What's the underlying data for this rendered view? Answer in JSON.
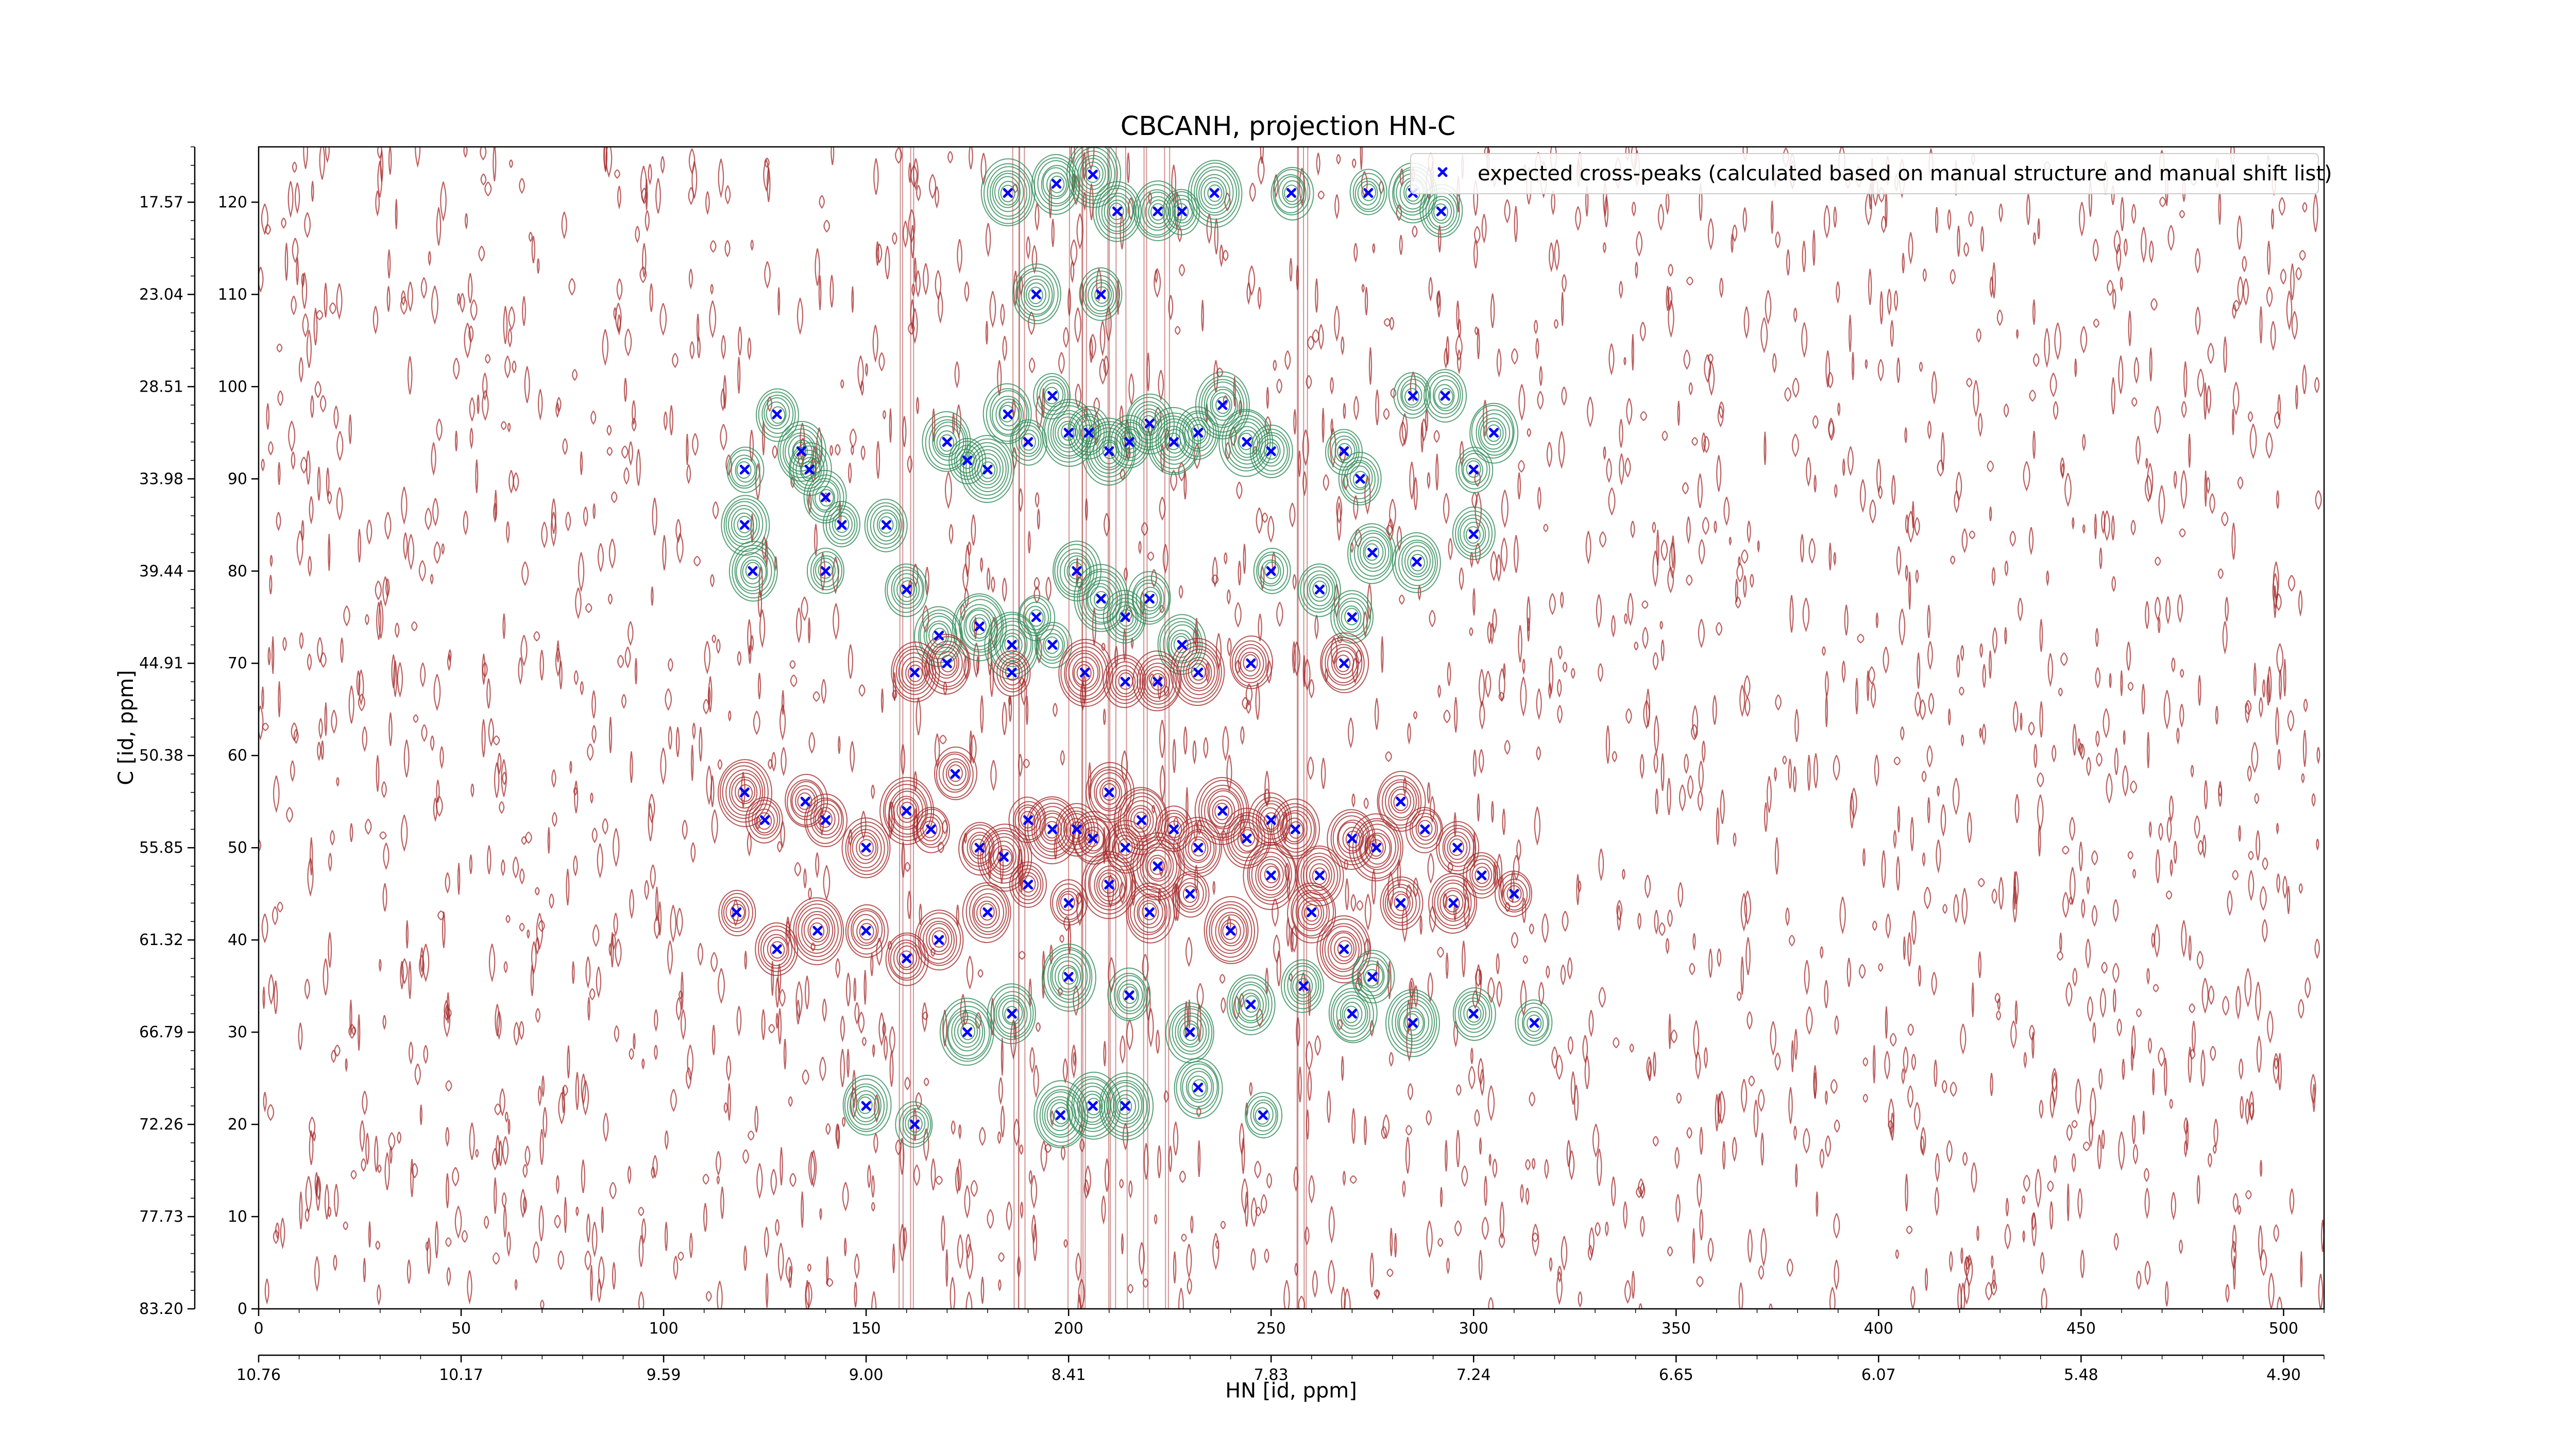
{
  "chart_data": {
    "type": "contour",
    "title": "CBCANH, projection HN-C",
    "xlabel": "HN [id, ppm]",
    "ylabel": "C [id, ppm]",
    "xlim": [
      0,
      510
    ],
    "ylim": [
      0,
      126
    ],
    "x_ticks": [
      0,
      50,
      100,
      150,
      200,
      250,
      300,
      350,
      400,
      450,
      500
    ],
    "y_ticks": [
      0,
      10,
      20,
      30,
      40,
      50,
      60,
      70,
      80,
      90,
      100,
      110,
      120
    ],
    "secondary_x_ticks": [
      {
        "at": 0,
        "label": "10.76"
      },
      {
        "at": 50,
        "label": "10.17"
      },
      {
        "at": 100,
        "label": "9.59"
      },
      {
        "at": 150,
        "label": "9.00"
      },
      {
        "at": 200,
        "label": "8.41"
      },
      {
        "at": 250,
        "label": "7.83"
      },
      {
        "at": 300,
        "label": "7.24"
      },
      {
        "at": 350,
        "label": "6.65"
      },
      {
        "at": 400,
        "label": "6.07"
      },
      {
        "at": 450,
        "label": "5.48"
      },
      {
        "at": 500,
        "label": "4.90"
      }
    ],
    "secondary_y_ticks": [
      {
        "at": 0,
        "label": "83.20"
      },
      {
        "at": 10,
        "label": "77.73"
      },
      {
        "at": 20,
        "label": "72.26"
      },
      {
        "at": 30,
        "label": "66.79"
      },
      {
        "at": 40,
        "label": "61.32"
      },
      {
        "at": 50,
        "label": "55.85"
      },
      {
        "at": 60,
        "label": "50.38"
      },
      {
        "at": 70,
        "label": "44.91"
      },
      {
        "at": 80,
        "label": "39.44"
      },
      {
        "at": 90,
        "label": "33.98"
      },
      {
        "at": 100,
        "label": "28.51"
      },
      {
        "at": 110,
        "label": "23.04"
      },
      {
        "at": 120,
        "label": "17.57"
      }
    ],
    "legend": {
      "position": "top-right",
      "entries": [
        {
          "label": "expected cross-peaks (calculated based on manual structure and manual shift list)",
          "color": "#0000ff",
          "marker": "x"
        }
      ]
    },
    "colors": {
      "positive_contour": "#a52a2a",
      "negative_contour": "#2e8b57",
      "peak_marker": "#0000ff"
    },
    "series": [
      {
        "name": "expected cross-peaks (calculated based on manual structure and manual shift list)",
        "points": [
          [
            185,
            121
          ],
          [
            197,
            122
          ],
          [
            206,
            123
          ],
          [
            212,
            119
          ],
          [
            222,
            119
          ],
          [
            228,
            119
          ],
          [
            236,
            121
          ],
          [
            255,
            121
          ],
          [
            274,
            121
          ],
          [
            285,
            121
          ],
          [
            292,
            119
          ],
          [
            192,
            110
          ],
          [
            208,
            110
          ],
          [
            120,
            91
          ],
          [
            128,
            97
          ],
          [
            134,
            93
          ],
          [
            136,
            91
          ],
          [
            140,
            88
          ],
          [
            144,
            85
          ],
          [
            155,
            85
          ],
          [
            170,
            94
          ],
          [
            175,
            92
          ],
          [
            180,
            91
          ],
          [
            185,
            97
          ],
          [
            190,
            94
          ],
          [
            196,
            99
          ],
          [
            200,
            95
          ],
          [
            205,
            95
          ],
          [
            210,
            93
          ],
          [
            215,
            94
          ],
          [
            220,
            96
          ],
          [
            226,
            94
          ],
          [
            232,
            95
          ],
          [
            238,
            98
          ],
          [
            244,
            94
          ],
          [
            250,
            93
          ],
          [
            268,
            93
          ],
          [
            272,
            90
          ],
          [
            285,
            99
          ],
          [
            293,
            99
          ],
          [
            300,
            91
          ],
          [
            305,
            95
          ],
          [
            120,
            85
          ],
          [
            122,
            80
          ],
          [
            140,
            80
          ],
          [
            160,
            78
          ],
          [
            168,
            73
          ],
          [
            178,
            74
          ],
          [
            186,
            72
          ],
          [
            192,
            75
          ],
          [
            202,
            80
          ],
          [
            208,
            77
          ],
          [
            214,
            75
          ],
          [
            220,
            77
          ],
          [
            228,
            72
          ],
          [
            250,
            80
          ],
          [
            262,
            78
          ],
          [
            270,
            75
          ],
          [
            275,
            82
          ],
          [
            286,
            81
          ],
          [
            300,
            84
          ],
          [
            162,
            69
          ],
          [
            170,
            70
          ],
          [
            186,
            69
          ],
          [
            196,
            72
          ],
          [
            204,
            69
          ],
          [
            214,
            68
          ],
          [
            222,
            68
          ],
          [
            232,
            69
          ],
          [
            245,
            70
          ],
          [
            268,
            70
          ],
          [
            120,
            56
          ],
          [
            125,
            53
          ],
          [
            135,
            55
          ],
          [
            140,
            53
          ],
          [
            150,
            50
          ],
          [
            160,
            54
          ],
          [
            166,
            52
          ],
          [
            172,
            58
          ],
          [
            178,
            50
          ],
          [
            184,
            49
          ],
          [
            190,
            53
          ],
          [
            196,
            52
          ],
          [
            202,
            52
          ],
          [
            206,
            51
          ],
          [
            210,
            56
          ],
          [
            214,
            50
          ],
          [
            218,
            53
          ],
          [
            222,
            48
          ],
          [
            226,
            52
          ],
          [
            232,
            50
          ],
          [
            238,
            54
          ],
          [
            244,
            51
          ],
          [
            250,
            53
          ],
          [
            256,
            52
          ],
          [
            262,
            47
          ],
          [
            270,
            51
          ],
          [
            276,
            50
          ],
          [
            282,
            55
          ],
          [
            288,
            52
          ],
          [
            296,
            50
          ],
          [
            302,
            47
          ],
          [
            310,
            45
          ],
          [
            118,
            43
          ],
          [
            128,
            39
          ],
          [
            138,
            41
          ],
          [
            150,
            41
          ],
          [
            160,
            38
          ],
          [
            168,
            40
          ],
          [
            180,
            43
          ],
          [
            190,
            46
          ],
          [
            200,
            44
          ],
          [
            210,
            46
          ],
          [
            220,
            43
          ],
          [
            230,
            45
          ],
          [
            240,
            41
          ],
          [
            250,
            47
          ],
          [
            260,
            43
          ],
          [
            268,
            39
          ],
          [
            275,
            36
          ],
          [
            282,
            44
          ],
          [
            295,
            44
          ],
          [
            175,
            30
          ],
          [
            186,
            32
          ],
          [
            200,
            36
          ],
          [
            215,
            34
          ],
          [
            230,
            30
          ],
          [
            245,
            33
          ],
          [
            258,
            35
          ],
          [
            270,
            32
          ],
          [
            285,
            31
          ],
          [
            300,
            32
          ],
          [
            315,
            31
          ],
          [
            150,
            22
          ],
          [
            162,
            20
          ],
          [
            198,
            21
          ],
          [
            206,
            22
          ],
          [
            214,
            22
          ],
          [
            232,
            24
          ],
          [
            248,
            21
          ]
        ]
      }
    ]
  }
}
